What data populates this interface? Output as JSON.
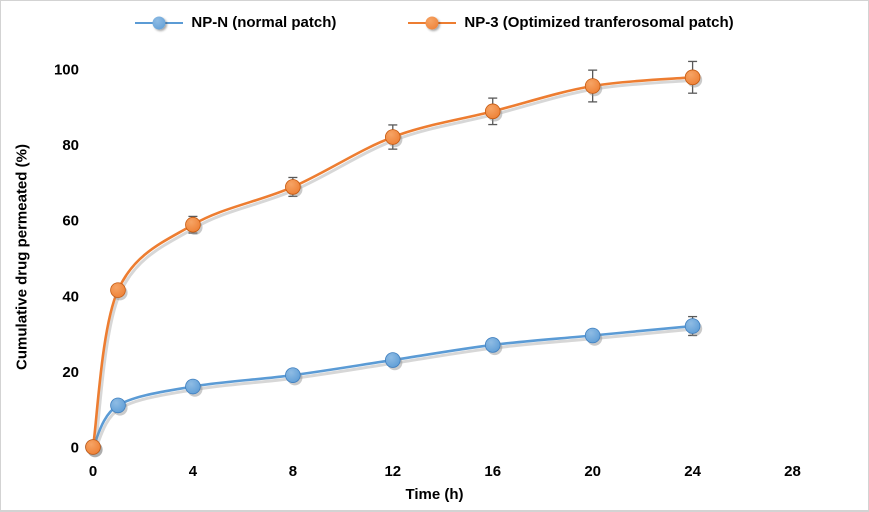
{
  "figure": {
    "background": "#ffffff",
    "border_color": "#d3d3d3"
  },
  "chart_data": {
    "type": "line",
    "x": [
      0,
      1,
      4,
      8,
      12,
      16,
      20,
      24
    ],
    "series": [
      {
        "name": "NP-N (normal patch)",
        "color": "#5B9BD5",
        "color_light": "#8FBCE4",
        "color_dark": "#3F7FBF",
        "values": [
          0,
          11,
          16,
          19,
          23,
          27,
          29.5,
          32
        ],
        "errors": [
          0,
          0.8,
          0.8,
          0.8,
          1,
          1,
          1,
          2.5
        ]
      },
      {
        "name": "NP-3 (Optimized tranferosomal patch)",
        "color": "#ED7D31",
        "color_light": "#F6A465",
        "color_dark": "#C55A11",
        "values": [
          0,
          41.5,
          58.8,
          68.8,
          82,
          88.8,
          95.5,
          97.8
        ],
        "errors": [
          0,
          1.5,
          2.2,
          2.5,
          3.2,
          3.5,
          4.2,
          4.2
        ]
      }
    ],
    "xlabel": "Time (h)",
    "ylabel": "Cumulative drug permeated (%)",
    "x_ticks": [
      0,
      4,
      8,
      12,
      16,
      20,
      24,
      28
    ],
    "y_ticks": [
      0,
      20,
      40,
      60,
      80,
      100
    ],
    "xlim": [
      0,
      29.5
    ],
    "ylim": [
      0,
      100
    ],
    "grid": false,
    "legend_position": "top",
    "tick_label_color": "#000000",
    "error_bar_color": "#595959",
    "line_shadow_color": "rgba(140,140,140,0.35)"
  }
}
